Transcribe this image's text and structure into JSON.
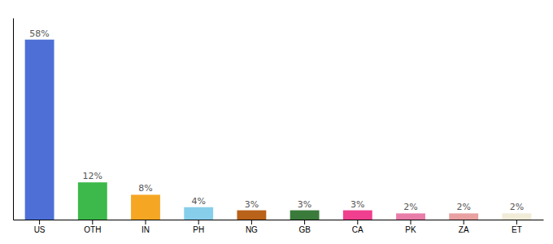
{
  "chart_data": {
    "type": "bar",
    "categories": [
      "US",
      "OTH",
      "IN",
      "PH",
      "NG",
      "GB",
      "CA",
      "PK",
      "ZA",
      "ET"
    ],
    "values": [
      58,
      12,
      8,
      4,
      3,
      3,
      3,
      2,
      2,
      2
    ],
    "value_labels": [
      "58%",
      "12%",
      "8%",
      "4%",
      "3%",
      "3%",
      "3%",
      "2%",
      "2%",
      "2%"
    ],
    "data_labels": true,
    "colors": [
      "#4d6fd6",
      "#3cb94a",
      "#f5a623",
      "#87ceeb",
      "#b8621a",
      "#3a7a3a",
      "#f03f8e",
      "#e87daa",
      "#e8a0a0",
      "#f0ecd8"
    ],
    "ylim": [
      0,
      65
    ],
    "yticks": [],
    "tick_labels": "x",
    "grid": false
  }
}
